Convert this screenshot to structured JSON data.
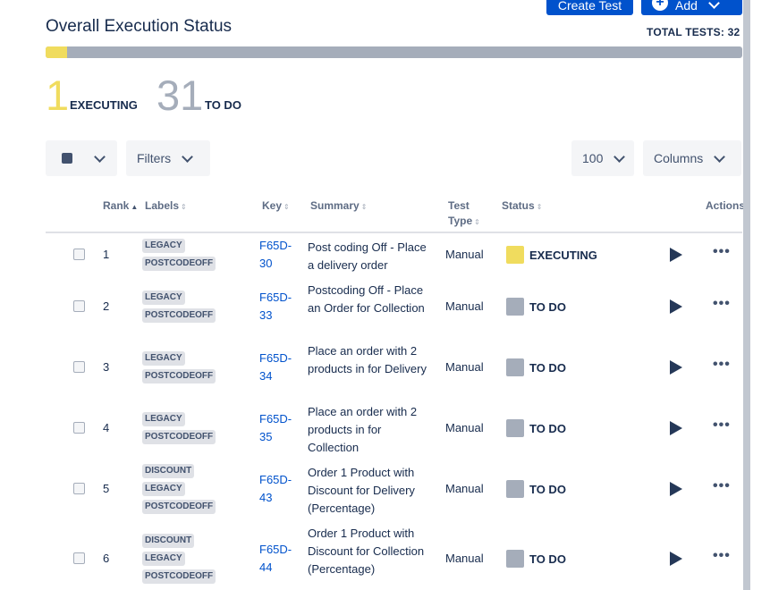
{
  "header": {
    "create_test_label": "Create Test",
    "add_label": "Add",
    "title": "Overall Execution Status",
    "total_tests": "TOTAL TESTS: 32"
  },
  "summary_counts": {
    "executing_count": "1",
    "executing_label": "EXECUTING",
    "todo_count": "31",
    "todo_label": "TO DO",
    "progress_fraction_executing": 0.03125
  },
  "toolbar": {
    "filters_label": "Filters",
    "page_size": "100",
    "columns_label": "Columns"
  },
  "columns": {
    "rank": "Rank",
    "labels": "Labels",
    "key": "Key",
    "summary": "Summary",
    "test_type_1": "Test",
    "test_type_2": "Type",
    "status": "Status",
    "actions": "Actions"
  },
  "colors": {
    "executing": "#f0dc5e",
    "todo": "#a5adba",
    "primary": "#0052cc"
  },
  "rows": [
    {
      "rank": "1",
      "labels": [
        "LEGACY",
        "POSTCODEOFF"
      ],
      "key_1": "F65D-",
      "key_2": "30",
      "summary": "Post coding Off - Place a delivery order",
      "type": "Manual",
      "status": "EXECUTING",
      "status_color": "#f0dc5e"
    },
    {
      "rank": "2",
      "labels": [
        "LEGACY",
        "POSTCODEOFF"
      ],
      "key_1": "F65D-",
      "key_2": "33",
      "summary": "Postcoding Off - Place an Order for Collection",
      "type": "Manual",
      "status": "TO DO",
      "status_color": "#a5adba"
    },
    {
      "rank": "3",
      "labels": [
        "LEGACY",
        "POSTCODEOFF"
      ],
      "key_1": "F65D-",
      "key_2": "34",
      "summary": "Place an order with 2 products in for Delivery",
      "type": "Manual",
      "status": "TO DO",
      "status_color": "#a5adba"
    },
    {
      "rank": "4",
      "labels": [
        "LEGACY",
        "POSTCODEOFF"
      ],
      "key_1": "F65D-",
      "key_2": "35",
      "summary": "Place an order with 2 products in for Collection",
      "type": "Manual",
      "status": "TO DO",
      "status_color": "#a5adba"
    },
    {
      "rank": "5",
      "labels": [
        "DISCOUNT",
        "LEGACY",
        "POSTCODEOFF"
      ],
      "key_1": "F65D-",
      "key_2": "43",
      "summary": "Order 1 Product with Discount for Delivery (Percentage)",
      "type": "Manual",
      "status": "TO DO",
      "status_color": "#a5adba"
    },
    {
      "rank": "6",
      "labels": [
        "DISCOUNT",
        "LEGACY",
        "POSTCODEOFF"
      ],
      "key_1": "F65D-",
      "key_2": "44",
      "summary": "Order 1 Product with Discount for Collection (Percentage)",
      "type": "Manual",
      "status": "TO DO",
      "status_color": "#a5adba"
    }
  ]
}
